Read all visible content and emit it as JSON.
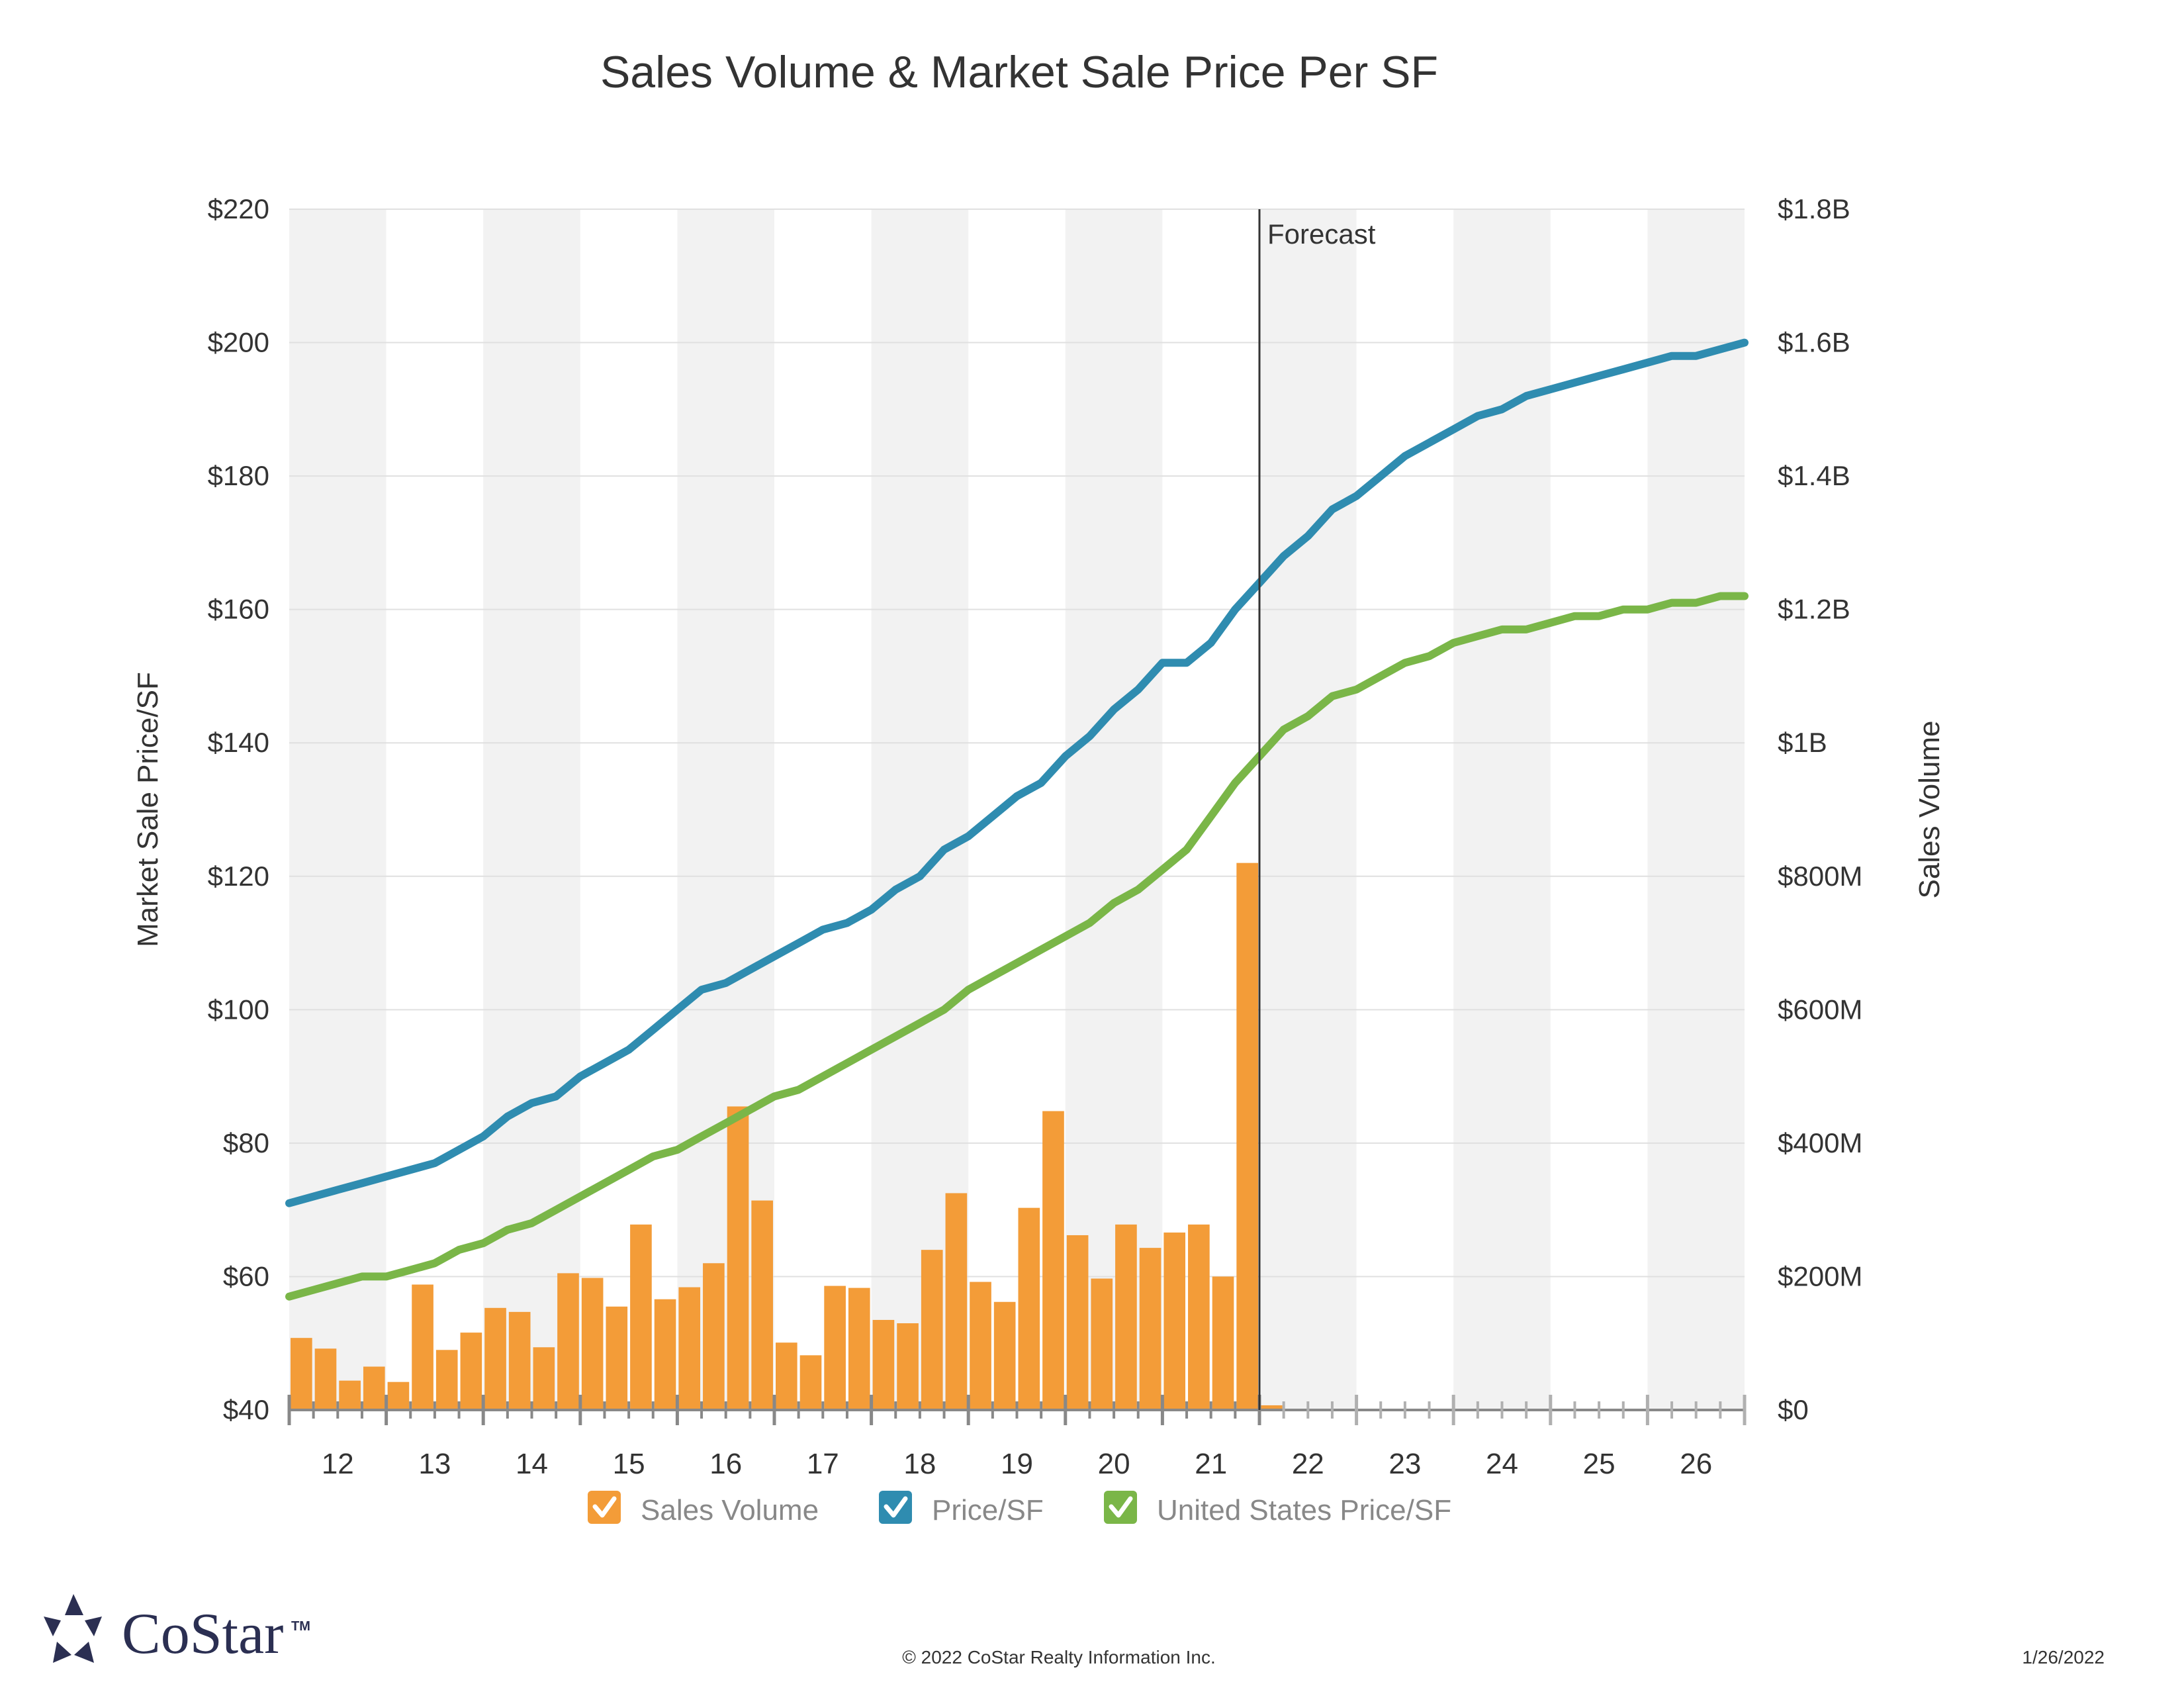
{
  "title": "Sales Volume & Market Sale Price Per SF",
  "chart_data": {
    "type": "bar+line",
    "title": "Sales Volume & Market Sale Price Per SF",
    "left_axis": {
      "label": "Market Sale Price/SF",
      "range": [
        40,
        220
      ],
      "ticks": [
        "$40",
        "$60",
        "$80",
        "$100",
        "$120",
        "$140",
        "$160",
        "$180",
        "$200",
        "$220"
      ]
    },
    "right_axis": {
      "label": "Sales Volume",
      "range": [
        0,
        1800000000
      ],
      "ticks": [
        "$0",
        "$200M",
        "$400M",
        "$600M",
        "$800M",
        "$1B",
        "$1.2B",
        "$1.4B",
        "$1.6B",
        "$1.8B"
      ]
    },
    "x_axis": {
      "years": [
        "12",
        "13",
        "14",
        "15",
        "16",
        "17",
        "18",
        "19",
        "20",
        "21",
        "22",
        "23",
        "24",
        "25",
        "26"
      ],
      "quarters_per_year": 4,
      "start": "2012 Q1",
      "end": "2026 Q4"
    },
    "forecast": {
      "label": "Forecast",
      "after_quarter_index": 39
    },
    "grid": true,
    "legend_position": "bottom",
    "series": [
      {
        "name": "Sales Volume",
        "type": "bar",
        "axis": "right",
        "color": "#f39c38",
        "values": [
          108,
          92,
          44,
          65,
          42,
          188,
          90,
          116,
          153,
          147,
          94,
          205,
          198,
          155,
          278,
          166,
          184,
          220,
          455,
          314,
          101,
          82,
          186,
          183,
          135,
          130,
          240,
          325,
          192,
          162,
          303,
          448,
          262,
          197,
          278,
          243,
          266,
          278,
          200,
          820,
          7
        ]
      },
      {
        "name": "Price/SF",
        "type": "line",
        "axis": "left",
        "color": "#2f8cb0",
        "values": [
          71,
          72,
          73,
          74,
          75,
          76,
          77,
          79,
          81,
          84,
          86,
          87,
          90,
          92,
          94,
          97,
          100,
          103,
          104,
          106,
          108,
          110,
          112,
          113,
          115,
          118,
          120,
          124,
          126,
          129,
          132,
          134,
          138,
          141,
          145,
          148,
          152,
          152,
          155,
          160,
          164,
          168,
          171,
          175,
          177,
          180,
          183,
          185,
          187,
          189,
          190,
          192,
          193,
          194,
          195,
          196,
          197,
          198,
          198,
          199,
          200
        ]
      },
      {
        "name": "United States Price/SF",
        "type": "line",
        "axis": "left",
        "color": "#7ab648",
        "values": [
          57,
          58,
          59,
          60,
          60,
          61,
          62,
          64,
          65,
          67,
          68,
          70,
          72,
          74,
          76,
          78,
          79,
          81,
          83,
          85,
          87,
          88,
          90,
          92,
          94,
          96,
          98,
          100,
          103,
          105,
          107,
          109,
          111,
          113,
          116,
          118,
          121,
          124,
          129,
          134,
          138,
          142,
          144,
          147,
          148,
          150,
          152,
          153,
          155,
          156,
          157,
          157,
          158,
          159,
          159,
          160,
          160,
          161,
          161,
          162,
          162
        ]
      }
    ]
  },
  "footer": {
    "copyright": "© 2022 CoStar Realty Information Inc.",
    "date": "1/26/2022"
  },
  "logo": {
    "text": "CoStar",
    "tm": "TM"
  }
}
